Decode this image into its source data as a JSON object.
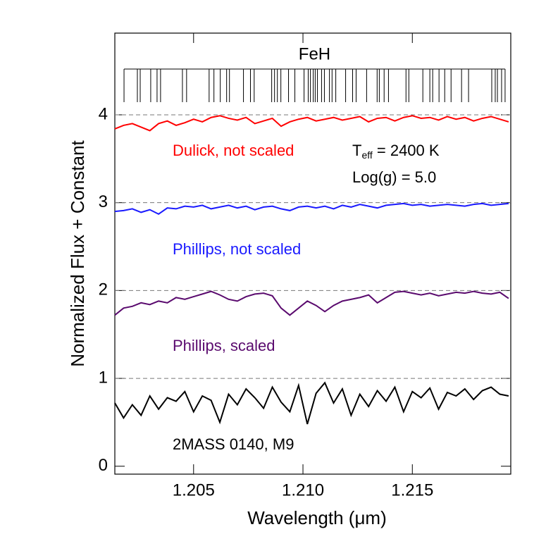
{
  "chart_data": {
    "type": "line",
    "xlabel": "Wavelength (μm)",
    "ylabel": "Normalized Flux + Constant",
    "xlim": [
      1.2014,
      1.2195
    ],
    "ylim": [
      -0.09,
      4.93
    ],
    "xticks": [
      1.205,
      {
        "value": 1.21,
        "label": "1.210"
      },
      1.215
    ],
    "yticks": [
      0,
      1,
      2,
      3,
      4
    ],
    "reference_lines": [
      1,
      2,
      3,
      4
    ],
    "line_list": {
      "label": "FeH",
      "x": [
        1.20182,
        1.20243,
        1.20256,
        1.20304,
        1.20333,
        1.20349,
        1.20449,
        1.20468,
        1.20571,
        1.20593,
        1.20622,
        1.20651,
        1.20664,
        1.20728,
        1.2076,
        1.20777,
        1.20857,
        1.2087,
        1.20883,
        1.20899,
        1.20934,
        1.20963,
        1.21005,
        1.21024,
        1.21034,
        1.21047,
        1.21056,
        1.21066,
        1.21085,
        1.21098,
        1.21121,
        1.21133,
        1.2115,
        1.21195,
        1.21227,
        1.21243,
        1.21291,
        1.21339,
        1.21349,
        1.21371,
        1.21391,
        1.21471,
        1.21484,
        1.21548,
        1.2158,
        1.21593,
        1.21622,
        1.21648,
        1.21677,
        1.21725,
        1.21757,
        1.21863,
        1.21879,
        1.21889,
        1.21908,
        1.21924
      ]
    },
    "x": [
      1.2014,
      1.2018,
      1.2022,
      1.2026,
      1.203,
      1.2034,
      1.2038,
      1.2042,
      1.2046,
      1.205,
      1.2054,
      1.2058,
      1.2062,
      1.2066,
      1.207,
      1.2074,
      1.2078,
      1.2082,
      1.2086,
      1.209,
      1.2094,
      1.2098,
      1.2102,
      1.2106,
      1.211,
      1.2114,
      1.2118,
      1.2122,
      1.2126,
      1.213,
      1.2134,
      1.2138,
      1.2142,
      1.2146,
      1.215,
      1.2154,
      1.2158,
      1.2162,
      1.2166,
      1.217,
      1.2174,
      1.2178,
      1.2182,
      1.2186,
      1.219,
      1.2194
    ],
    "series": [
      {
        "name": "Dulick, not scaled",
        "color": "#ff0000",
        "values": [
          3.84,
          3.88,
          3.9,
          3.86,
          3.82,
          3.9,
          3.93,
          3.88,
          3.91,
          3.95,
          3.92,
          3.97,
          3.99,
          3.96,
          3.94,
          3.97,
          3.9,
          3.93,
          3.96,
          3.87,
          3.92,
          3.95,
          3.97,
          3.93,
          3.95,
          3.97,
          3.94,
          3.96,
          3.98,
          3.92,
          3.96,
          3.97,
          3.93,
          3.97,
          3.99,
          3.96,
          3.97,
          3.94,
          3.98,
          3.95,
          3.97,
          3.93,
          3.96,
          3.98,
          3.95,
          3.92
        ]
      },
      {
        "name": "Phillips, not scaled",
        "color": "#1a1aff",
        "values": [
          2.9,
          2.91,
          2.93,
          2.89,
          2.92,
          2.87,
          2.94,
          2.93,
          2.96,
          2.95,
          2.97,
          2.93,
          2.95,
          2.97,
          2.94,
          2.96,
          2.92,
          2.95,
          2.96,
          2.93,
          2.91,
          2.95,
          2.96,
          2.94,
          2.96,
          2.93,
          2.97,
          2.95,
          2.98,
          2.96,
          2.94,
          2.97,
          2.98,
          2.99,
          2.97,
          2.98,
          2.96,
          2.97,
          2.98,
          2.97,
          2.96,
          2.98,
          2.99,
          2.97,
          2.98,
          2.99
        ]
      },
      {
        "name": "Phillips, scaled",
        "color": "#5a0a6e",
        "values": [
          1.72,
          1.8,
          1.82,
          1.86,
          1.84,
          1.88,
          1.86,
          1.92,
          1.9,
          1.93,
          1.96,
          1.99,
          1.95,
          1.9,
          1.88,
          1.93,
          1.96,
          1.97,
          1.94,
          1.8,
          1.72,
          1.8,
          1.88,
          1.83,
          1.76,
          1.83,
          1.88,
          1.9,
          1.92,
          1.95,
          1.86,
          1.92,
          1.98,
          1.99,
          1.97,
          1.95,
          1.97,
          1.94,
          1.96,
          1.98,
          1.97,
          1.99,
          1.97,
          1.96,
          1.98,
          1.91
        ]
      },
      {
        "name": "2MASS 0140, M9",
        "color": "#000000",
        "values": [
          0.72,
          0.55,
          0.7,
          0.58,
          0.8,
          0.65,
          0.78,
          0.74,
          0.85,
          0.62,
          0.8,
          0.75,
          0.5,
          0.82,
          0.7,
          0.88,
          0.78,
          0.66,
          0.9,
          0.73,
          0.62,
          0.92,
          0.48,
          0.83,
          0.95,
          0.72,
          0.88,
          0.58,
          0.82,
          0.68,
          0.86,
          0.74,
          0.9,
          0.62,
          0.85,
          0.78,
          0.89,
          0.65,
          0.84,
          0.8,
          0.88,
          0.76,
          0.86,
          0.9,
          0.82,
          0.8
        ]
      }
    ],
    "annotations": [
      {
        "text": "T",
        "subscript": "eff",
        "suffix": " = 2400 K"
      },
      {
        "text": "Log(g) = 5.0"
      }
    ]
  }
}
